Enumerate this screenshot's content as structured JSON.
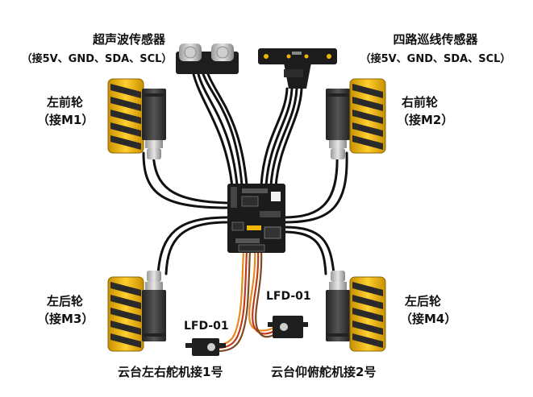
{
  "labels": {
    "ultrasonic_title": "超声波传感器",
    "ultrasonic_pins": "（接5V、GND、SDA、SCL）",
    "linetrack_title": "四路巡线传感器",
    "linetrack_pins": "（接5V、GND、SDA、SCL）",
    "front_left_name": "左前轮",
    "front_left_port": "（接M1）",
    "front_right_name": "右前轮",
    "front_right_port": "（接M2）",
    "rear_left_name": "左后轮",
    "rear_left_port": "（接M3）",
    "rear_right_name": "左后轮",
    "rear_right_port": "（接M4）",
    "servo1_model": "LFD-01",
    "servo1_caption": "云台左右舵机接1号",
    "servo2_model": "LFD-01",
    "servo2_caption": "云台仰俯舵机接2号"
  },
  "colors": {
    "wheel_yellow": "#f2b705",
    "roller_dark": "#2a2a2a",
    "motor_body": "#3a3a3a",
    "board": "#1b1b1b",
    "wire": "#111111",
    "servo_wire_orange": "#e8891c",
    "servo_wire_red": "#c23a1a",
    "servo_wire_brown": "#7a4a22"
  }
}
